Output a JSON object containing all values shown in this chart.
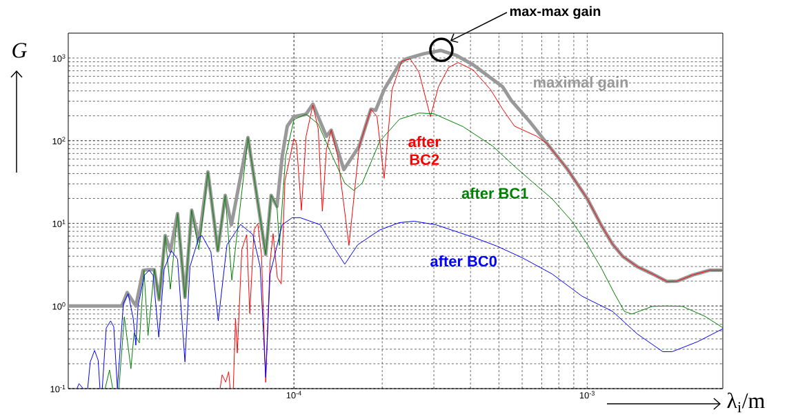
{
  "chart_data": {
    "type": "line",
    "log": "xy",
    "grid": true,
    "xlim": [
      1.7e-05,
      0.0029
    ],
    "ylim": [
      0.1,
      2000
    ],
    "xticks": [
      {
        "value": 0.0001,
        "label": "10$^{-4}$"
      },
      {
        "value": 0.001,
        "label": "10$^{-3}$"
      }
    ],
    "yticks": [
      {
        "value": 0.1,
        "label": "10$^{-1}$"
      },
      {
        "value": 1,
        "label": "10$^{0}$"
      },
      {
        "value": 10,
        "label": "10$^{1}$"
      },
      {
        "value": 100,
        "label": "10$^{2}$"
      },
      {
        "value": 1000,
        "label": "10$^{3}$"
      }
    ],
    "xlabel": "λ$_{i}$/m",
    "ylabel": "G",
    "annotations": [
      "max-max gain"
    ],
    "series": [
      {
        "name": "maximal gain",
        "color": "#999999",
        "x": [
          1.7e-05,
          2.59e-05,
          2.7e-05,
          2.89e-05,
          3.06e-05,
          3.19e-05,
          3.34e-05,
          3.47e-05,
          3.64e-05,
          3.79e-05,
          4.01e-05,
          4.25e-05,
          4.48e-05,
          4.74e-05,
          5.09e-05,
          5.5e-05,
          5.83e-05,
          6.12e-05,
          6.97e-05,
          8.01e-05,
          8.36e-05,
          8.75e-05,
          9.12e-05,
          9.49e-05,
          0.0001,
          0.00011,
          0.000116,
          0.000129,
          0.000134,
          0.000148,
          0.000167,
          0.000183,
          0.00019,
          0.000203,
          0.000229,
          0.000242,
          0.000277,
          0.000317,
          0.000357,
          0.000408,
          0.000515,
          0.000553,
          0.000634,
          0.000729,
          0.000854,
          0.001,
          0.00112,
          0.00122,
          0.00132,
          0.00148,
          0.00167,
          0.00187,
          0.00203,
          0.00229,
          0.00262,
          0.0029
        ],
        "values": [
          1,
          1,
          1.45,
          1.0,
          2.7,
          2.75,
          2.75,
          1.19,
          7.1,
          4.6,
          13.1,
          1.27,
          14.4,
          6.1,
          41.9,
          4.66,
          21.8,
          9.6,
          109,
          4.2,
          21.8,
          16,
          65,
          150,
          195,
          209,
          277,
          113,
          134,
          44.7,
          86,
          240,
          233,
          415,
          850,
          980,
          1125,
          1235,
          1080,
          830,
          448,
          301,
          173,
          92.6,
          45.7,
          19.9,
          9.3,
          5.6,
          4.0,
          3.0,
          2.44,
          1.98,
          2.0,
          2.37,
          2.71,
          2.71
        ]
      },
      {
        "name": "after BC2",
        "color": "#ff0000",
        "x": [
          5.6e-05,
          5.69e-05,
          5.85e-05,
          5.99e-05,
          6.06e-05,
          6.14e-05,
          6.21e-05,
          6.32e-05,
          6.41e-05,
          6.64e-05,
          6.9e-05,
          7.07e-05,
          7.31e-05,
          7.53e-05,
          7.75e-05,
          8.01e-05,
          8.29e-05,
          8.49e-05,
          8.78e-05,
          9.05e-05,
          9.32e-05,
          0.0001,
          0.000102,
          0.000106,
          0.00011,
          0.000116,
          0.000121,
          0.000125,
          0.000129,
          0.000134,
          0.000141,
          0.000154,
          0.000167,
          0.000183,
          0.000192,
          0.000203,
          0.000216,
          0.000233,
          0.000249,
          0.000267,
          0.000292,
          0.000311,
          0.000337,
          0.000363,
          0.000408,
          0.000468,
          0.000515,
          0.000565,
          0.000673,
          0.000729,
          0.000854,
          0.001,
          0.00112,
          0.00122,
          0.00132,
          0.00148,
          0.00167,
          0.00187,
          0.00203,
          0.00229,
          0.00262,
          0.0029
        ],
        "values": [
          0.1,
          0.147,
          0.12,
          0.16,
          0.1,
          null,
          0.1,
          0.71,
          0.27,
          4.8,
          7.3,
          0.81,
          8.3,
          9.9,
          4.2,
          0.119,
          3.42,
          7.5,
          2.2,
          1.85,
          33,
          106,
          93,
          14.4,
          113,
          270,
          138,
          14,
          78,
          134,
          65.6,
          5.4,
          86,
          240,
          195,
          35,
          415,
          910,
          980,
          670,
          195,
          448,
          769,
          880,
          720,
          415,
          240,
          150,
          113,
          92.6,
          45.7,
          19.9,
          9.3,
          5.6,
          4.0,
          3.0,
          2.44,
          1.98,
          2.0,
          2.37,
          2.71,
          2.71
        ]
      },
      {
        "name": "after BC1",
        "color": "#008000",
        "x": [
          2.27e-05,
          2.35e-05,
          2.41e-05,
          2.47e-05,
          2.53e-05,
          2.64e-05,
          2.78e-05,
          2.85e-05,
          2.97e-05,
          3.08e-05,
          3.18e-05,
          3.34e-05,
          3.47e-05,
          3.64e-05,
          3.79e-05,
          4.01e-05,
          4.25e-05,
          4.48e-05,
          4.74e-05,
          5.09e-05,
          5.5e-05,
          5.83e-05,
          6.14e-05,
          6.97e-05,
          8.01e-05,
          8.36e-05,
          8.75e-05,
          8.92e-05,
          9.37e-05,
          0.0001,
          0.00011,
          0.000121,
          0.000135,
          0.000149,
          0.00016,
          0.000171,
          0.000196,
          0.000229,
          0.000267,
          0.0003,
          0.000377,
          0.000476,
          0.000565,
          0.000648,
          0.000759,
          0.000887,
          0.001,
          0.00112,
          0.00124,
          0.00134,
          0.00142,
          0.00167,
          0.00187,
          0.00211,
          0.00252,
          0.0029
        ],
        "values": [
          0.1,
          0.168,
          0.1,
          null,
          0.1,
          0.74,
          0.174,
          0.47,
          0.357,
          2.7,
          0.44,
          2.8,
          1.2,
          7.1,
          1.6,
          13.1,
          1.27,
          14.4,
          4.8,
          41.9,
          4.66,
          21.8,
          2.05,
          109,
          4.2,
          21.8,
          16,
          5.4,
          65,
          180,
          209,
          159,
          65.6,
          30.7,
          25,
          30.7,
          98,
          182,
          216,
          212,
          148,
          86,
          49,
          32,
          19.8,
          10.6,
          5.6,
          2.82,
          1.4,
          0.857,
          0.8,
          0.99,
          1.0,
          0.99,
          0.75,
          0.546
        ]
      },
      {
        "name": "after BC0",
        "color": "#0000ff",
        "x": [
          1.82e-05,
          1.85e-05,
          1.91e-05,
          1.95e-05,
          1.98e-05,
          2.02e-05,
          2.09e-05,
          2.15e-05,
          2.18e-05,
          2.2e-05,
          2.22e-05,
          2.29e-05,
          2.37e-05,
          2.43e-05,
          2.5e-05,
          2.62e-05,
          2.72e-05,
          2.83e-05,
          2.89e-05,
          2.94e-05,
          3.09e-05,
          3.21e-05,
          3.31e-05,
          3.46e-05,
          3.61e-05,
          3.82e-05,
          4.01e-05,
          4.25e-05,
          4.42e-05,
          4.74e-05,
          4.86e-05,
          5.21e-05,
          5.52e-05,
          5.91e-05,
          6.58e-05,
          7.24e-05,
          7.67e-05,
          8.01e-05,
          8.29e-05,
          9.12e-05,
          9.87e-05,
          0.000105,
          0.000123,
          0.000135,
          0.000149,
          0.000165,
          0.000196,
          0.000229,
          0.000257,
          0.000305,
          0.000408,
          0.000492,
          0.000599,
          0.000759,
          0.000961,
          0.00122,
          0.00148,
          0.00181,
          0.00195,
          0.00238,
          0.0029
        ],
        "values": [
          0.1,
          0.115,
          0.1,
          null,
          0.1,
          0.21,
          0.29,
          0.22,
          0.1,
          null,
          0.1,
          0.54,
          0.66,
          0.56,
          0.1,
          1.07,
          1.41,
          0.71,
          0.335,
          1.0,
          2.35,
          2.7,
          2.35,
          0.42,
          2.79,
          4.66,
          3.67,
          0.21,
          2.98,
          6.8,
          7.1,
          4.5,
          0.66,
          5.5,
          9.7,
          7.3,
          2.98,
          0.137,
          2.43,
          9.6,
          11.7,
          11.7,
          9.6,
          5.5,
          3.2,
          5.5,
          8.3,
          10.2,
          10.6,
          9.6,
          6.8,
          5.3,
          3.85,
          2.44,
          1.31,
          0.86,
          0.46,
          0.28,
          0.28,
          0.37,
          0.53
        ]
      }
    ]
  }
}
